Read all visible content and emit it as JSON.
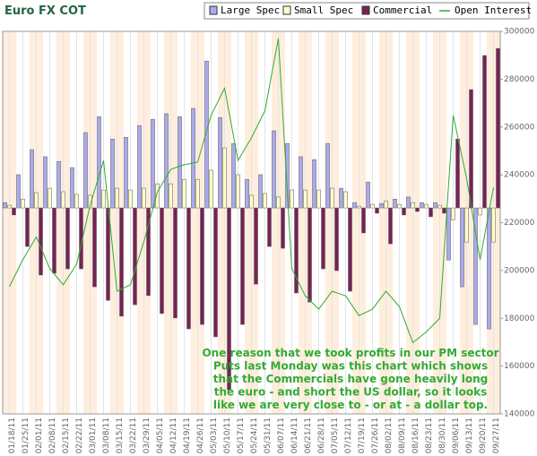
{
  "chart_data": {
    "type": "bar-line",
    "title": "Euro FX COT",
    "annotations": [
      "One reason that we took profits in our PM sector",
      "Puts last Monday was this chart which shows",
      "that the Commercials have gone heavily long",
      "the euro - and short the US dollar, so it looks",
      "like we are very close to - or at - a dollar top."
    ],
    "categories": [
      "01/18/11",
      "01/25/11",
      "02/01/11",
      "02/08/11",
      "02/15/11",
      "02/22/11",
      "03/01/11",
      "03/08/11",
      "03/15/11",
      "03/22/11",
      "03/29/11",
      "04/05/11",
      "04/12/11",
      "04/19/11",
      "04/26/11",
      "05/03/11",
      "05/10/11",
      "05/17/11",
      "05/24/11",
      "05/31/11",
      "06/07/11",
      "06/14/11",
      "06/21/11",
      "06/28/11",
      "07/05/11",
      "07/12/11",
      "07/19/11",
      "07/26/11",
      "08/02/11",
      "08/09/11",
      "08/16/11",
      "08/23/11",
      "08/30/11",
      "09/06/11",
      "09/13/11",
      "09/20/11",
      "09/27/11"
    ],
    "series": [
      {
        "name": "Large Spec",
        "color": "#aaaaee",
        "kind": "bar",
        "values": [
          1800,
          11300,
          19800,
          17400,
          15800,
          13700,
          25600,
          31000,
          23400,
          24000,
          28000,
          30100,
          32000,
          31000,
          33800,
          49900,
          30700,
          21900,
          9700,
          11300,
          26200,
          21900,
          17400,
          16400,
          21900,
          6700,
          1800,
          8800,
          1500,
          3000,
          3700,
          1800,
          1800,
          -17700,
          -26800,
          -39600,
          -41100
        ]
      },
      {
        "name": "Small Spec",
        "color": "#ffffcc",
        "kind": "bar",
        "values": [
          900,
          3000,
          5200,
          6700,
          5500,
          4600,
          4300,
          6100,
          6700,
          6100,
          6700,
          8200,
          8200,
          9700,
          9700,
          12800,
          20400,
          11300,
          4300,
          4900,
          3700,
          6100,
          6100,
          6100,
          6700,
          5500,
          600,
          1200,
          2400,
          1200,
          1800,
          1200,
          900,
          -4000,
          -11600,
          -2400,
          -11600
        ]
      },
      {
        "name": "Commercial",
        "color": "#772255",
        "kind": "bar",
        "values": [
          -2400,
          -13100,
          -22800,
          -22200,
          -20700,
          -20700,
          -26800,
          -31400,
          -36800,
          -32900,
          -29800,
          -35900,
          -37400,
          -41100,
          -39600,
          -43800,
          -61800,
          -39600,
          -25900,
          -13100,
          -13700,
          -28900,
          -32000,
          -20700,
          -21300,
          -28300,
          -8500,
          -1800,
          -12200,
          -2400,
          -1200,
          -3000,
          -1800,
          23400,
          40200,
          51800,
          54200
        ]
      },
      {
        "name": "Open Interest",
        "color": "#33aa33",
        "kind": "line",
        "axis": "y2",
        "values": [
          193200,
          204500,
          214000,
          200800,
          194000,
          202600,
          227200,
          246000,
          191300,
          194000,
          212100,
          232800,
          242300,
          244200,
          245300,
          264900,
          276200,
          246000,
          255500,
          266800,
          297000,
          200800,
          189400,
          183800,
          191300,
          189400,
          181100,
          183800,
          191300,
          184900,
          169800,
          174300,
          180000,
          264900,
          238500,
          204500,
          234700
        ]
      }
    ],
    "ylim": [
      -70000,
      60000
    ],
    "y2lim": [
      140000,
      300000
    ],
    "y2ticks": [
      140000,
      160000,
      180000,
      200000,
      220000,
      240000,
      260000,
      280000,
      300000
    ]
  }
}
